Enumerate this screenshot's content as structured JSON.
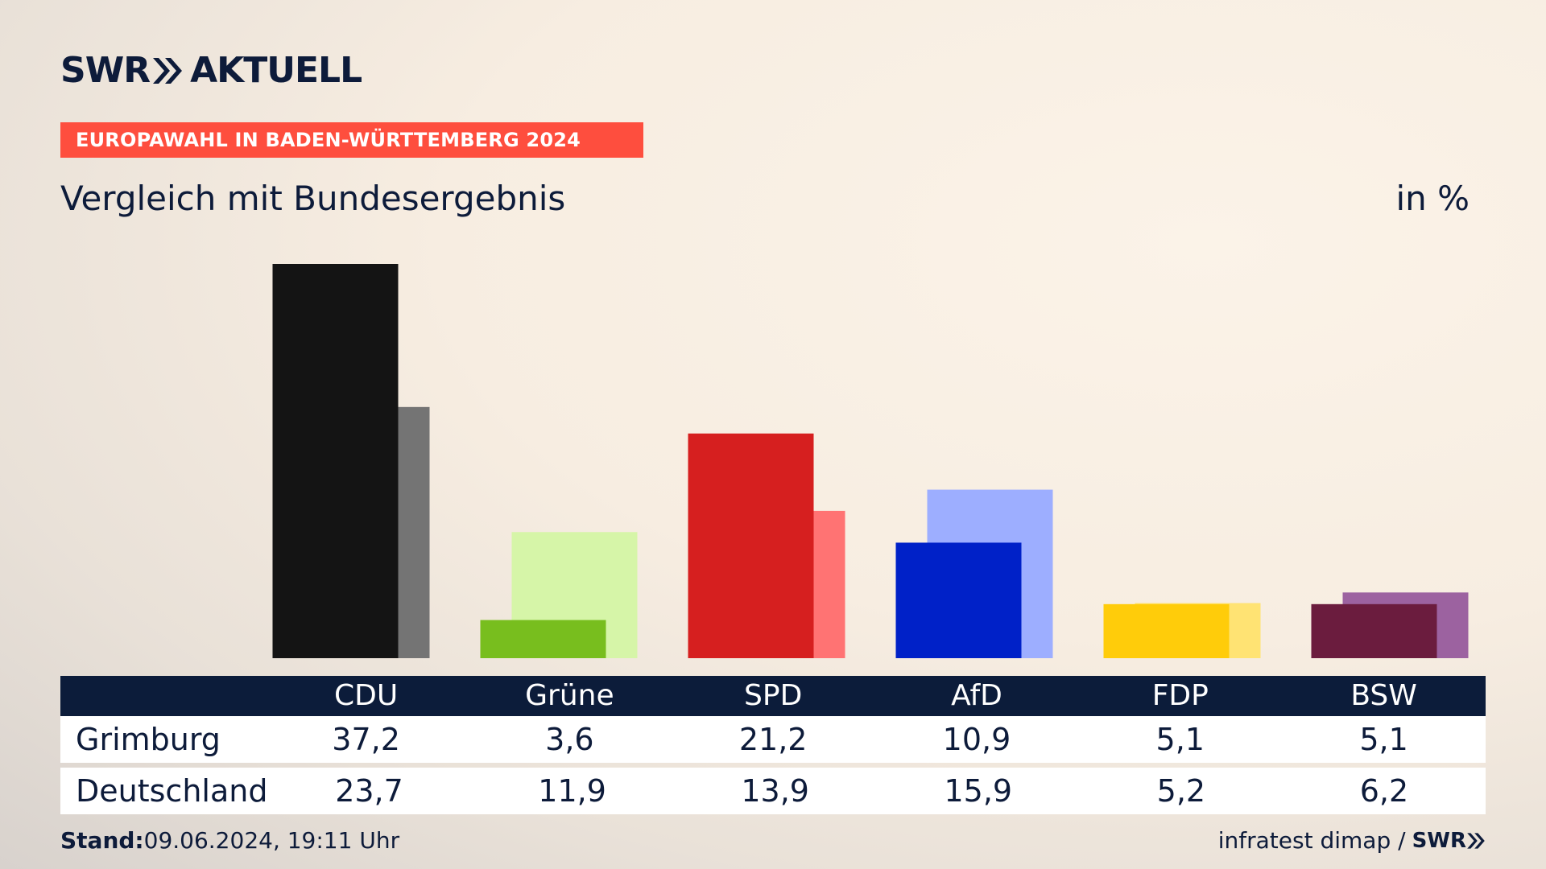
{
  "header": {
    "logo_left": "SWR",
    "logo_right": "AKTUELL",
    "badge": "EUROPAWAHL IN BADEN-WÜRTTEMBERG 2024",
    "subtitle": "Vergleich mit Bundesergebnis",
    "unit": "in %"
  },
  "chart_data": {
    "type": "bar",
    "categories": [
      "CDU",
      "Grüne",
      "SPD",
      "AfD",
      "FDP",
      "BSW"
    ],
    "series": [
      {
        "name": "Grimburg",
        "values": [
          37.2,
          3.6,
          21.2,
          10.9,
          5.1,
          5.1
        ]
      },
      {
        "name": "Deutschland",
        "values": [
          23.7,
          11.9,
          13.9,
          15.9,
          5.2,
          6.2
        ]
      }
    ],
    "colors_primary": [
      "#141414",
      "#78be1e",
      "#d61f1f",
      "#0021c8",
      "#ffcc0a",
      "#6b1c3e"
    ],
    "colors_secondary": [
      "#747474",
      "#d6f5a8",
      "#ff7373",
      "#9daeff",
      "#ffe373",
      "#9c62a0"
    ],
    "ylim": [
      0,
      37.2
    ],
    "grid": false
  },
  "table": {
    "row_labels": [
      "Grimburg",
      "Deutschland"
    ],
    "grimburg": [
      "37,2",
      "3,6",
      "21,2",
      "10,9",
      "5,1",
      "5,1"
    ],
    "deutschland": [
      "23,7",
      "11,9",
      "13,9",
      "15,9",
      "5,2",
      "6,2"
    ]
  },
  "footer": {
    "stand_label": "Stand:",
    "stand_value": "09.06.2024, 19:11 Uhr",
    "source": "infratest dimap /",
    "source_logo": "SWR"
  }
}
